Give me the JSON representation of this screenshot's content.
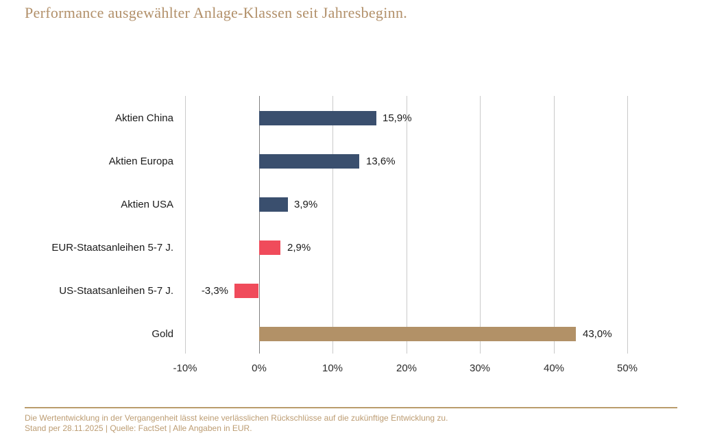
{
  "title": "Performance ausgewählter Anlage-Klassen seit Jahresbeginn.",
  "chart_data": {
    "type": "bar",
    "orientation": "horizontal",
    "title": "Performance ausgewählter Anlage-Klassen seit Jahresbeginn.",
    "categories": [
      "Aktien China",
      "Aktien Europa",
      "Aktien USA",
      "EUR-Staatsanleihen 5-7 J.",
      "US-Staatsanleihen 5-7 J.",
      "Gold"
    ],
    "values": [
      15.9,
      13.6,
      3.9,
      2.9,
      -3.3,
      43.0
    ],
    "value_labels": [
      "15,9%",
      "13,6%",
      "3,9%",
      "2,9%",
      "-3,3%",
      "43,0%"
    ],
    "bar_colors": [
      "#3A4F6E",
      "#3A4F6E",
      "#3A4F6E",
      "#F04B5B",
      "#F04B5B",
      "#B29167"
    ],
    "xlabel": "",
    "ylabel": "",
    "xlim": [
      -10,
      50
    ],
    "x_ticks": [
      -10,
      0,
      10,
      20,
      30,
      40,
      50
    ],
    "x_tick_labels": [
      "-10%",
      "0%",
      "10%",
      "20%",
      "30%",
      "40%",
      "50%"
    ],
    "grid": true,
    "legend": false
  },
  "colors": {
    "title_text": "#B2906A",
    "gridline": "#C9C9C9",
    "zero_line": "#7F7F7F",
    "label_text": "#1A1A1A",
    "tick_text": "#2B2B2B",
    "divider": "#B99B6B",
    "footer_text": "#BC9C72"
  },
  "footer": {
    "disclaimer": "Die Wertentwicklung in der Vergangenheit lässt keine verlässlichen Rückschlüsse auf die zukünftige Entwicklung zu.",
    "source": "Stand per 28.11.2025  |  Quelle: FactSet  |  Alle Angaben in EUR."
  }
}
